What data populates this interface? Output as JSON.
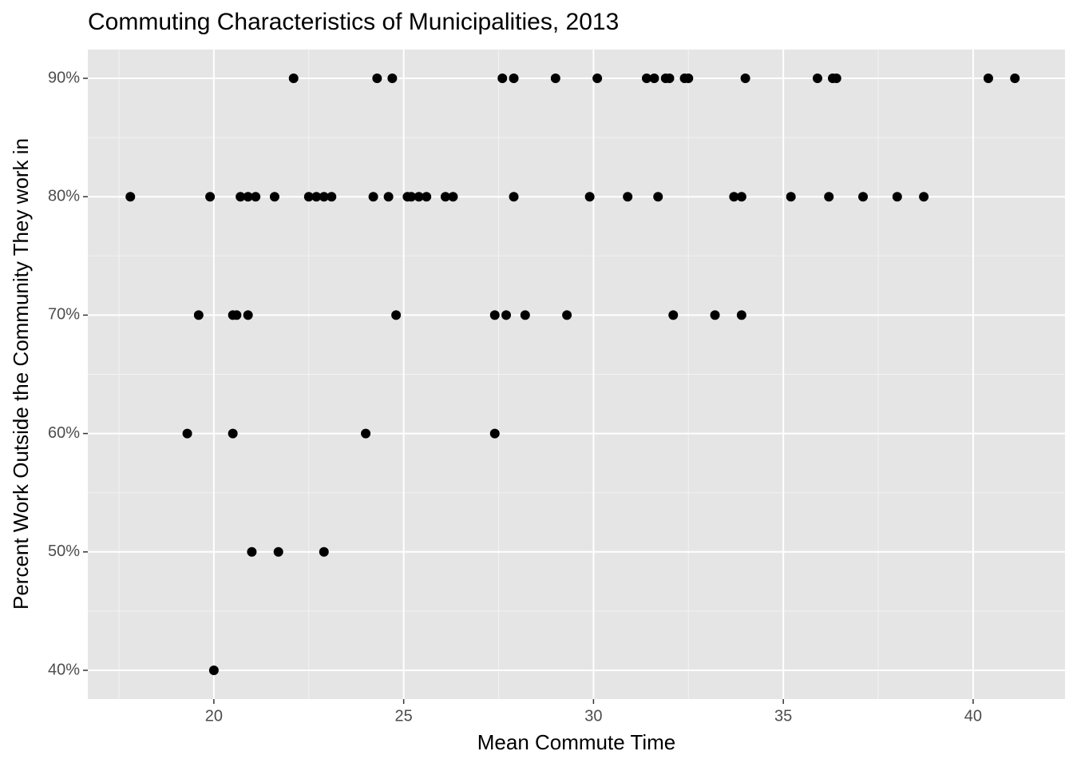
{
  "chart_data": {
    "type": "scatter",
    "title": "Commuting Characteristics of Municipalities, 2013",
    "x_label": "Mean Commute Time",
    "y_label": "Percent Work Outside the Community They work in",
    "color": "#000000",
    "grid": true,
    "xlim": [
      16.68,
      42.42
    ],
    "ylim": [
      37.57,
      92.43
    ],
    "xticks": [
      20,
      25,
      30,
      35,
      40
    ],
    "yticks": [
      {
        "value": 40,
        "label": "40%"
      },
      {
        "value": 50,
        "label": "50%"
      },
      {
        "value": 60,
        "label": "60%"
      },
      {
        "value": 70,
        "label": "70%"
      },
      {
        "value": 80,
        "label": "80%"
      },
      {
        "value": 90,
        "label": "90%"
      }
    ],
    "x": [
      22.1,
      24.3,
      24.7,
      27.6,
      27.9,
      29.0,
      30.1,
      31.4,
      31.6,
      31.9,
      32.0,
      32.4,
      32.5,
      34.0,
      35.9,
      36.3,
      36.4,
      40.4,
      41.1,
      17.8,
      19.9,
      20.7,
      20.9,
      21.1,
      21.6,
      22.5,
      22.7,
      22.9,
      23.1,
      24.2,
      24.6,
      25.1,
      25.2,
      25.4,
      25.6,
      26.1,
      26.3,
      27.9,
      29.9,
      30.9,
      31.7,
      33.7,
      33.9,
      35.2,
      36.2,
      37.1,
      38.0,
      38.7,
      19.6,
      20.5,
      20.6,
      20.9,
      24.8,
      27.4,
      27.7,
      28.2,
      29.3,
      32.1,
      33.2,
      33.9,
      19.3,
      20.5,
      24.0,
      27.4,
      21.0,
      21.7,
      22.9,
      20.0
    ],
    "y": [
      90,
      90,
      90,
      90,
      90,
      90,
      90,
      90,
      90,
      90,
      90,
      90,
      90,
      90,
      90,
      90,
      90,
      90,
      90,
      80,
      80,
      80,
      80,
      80,
      80,
      80,
      80,
      80,
      80,
      80,
      80,
      80,
      80,
      80,
      80,
      80,
      80,
      80,
      80,
      80,
      80,
      80,
      80,
      80,
      80,
      80,
      80,
      80,
      70,
      70,
      70,
      70,
      70,
      70,
      70,
      70,
      70,
      70,
      70,
      70,
      60,
      60,
      60,
      60,
      50,
      50,
      50,
      40
    ]
  }
}
